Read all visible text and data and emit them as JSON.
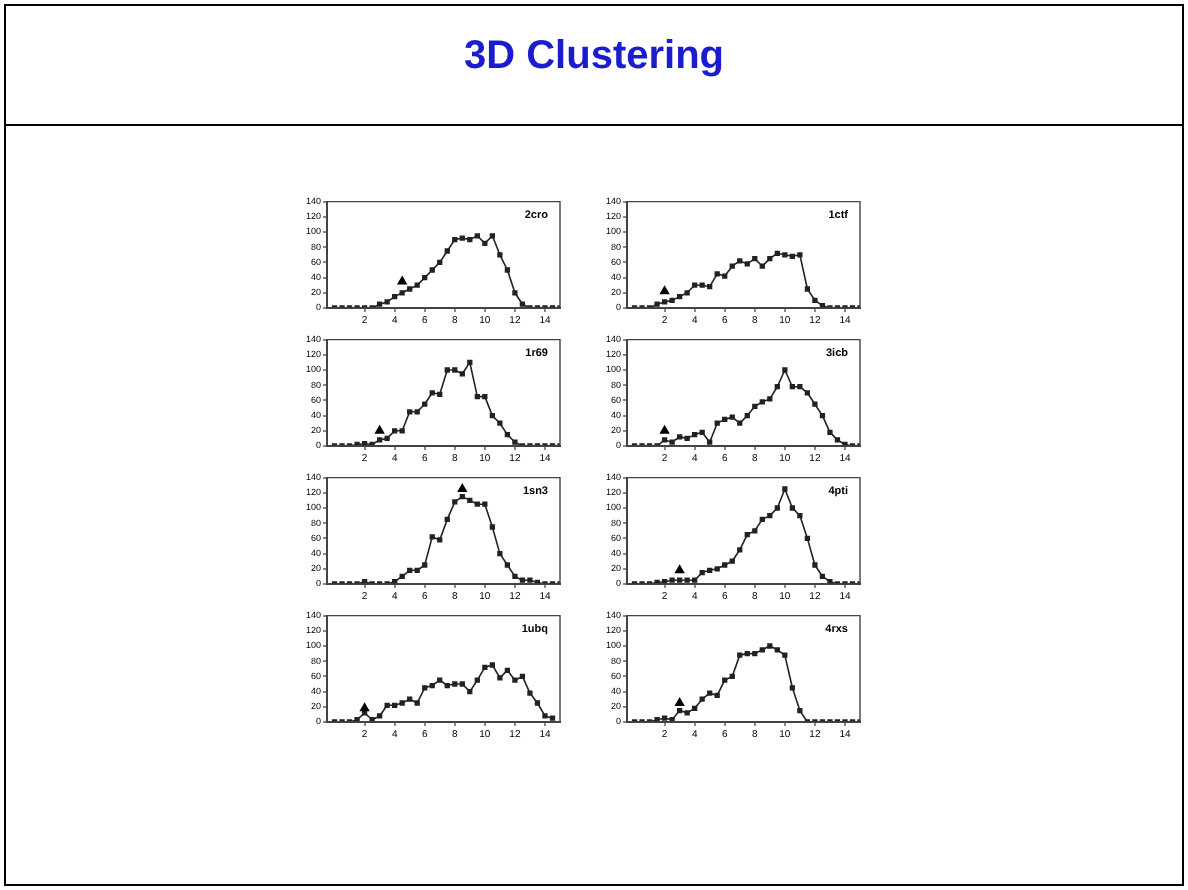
{
  "chart_data": [
    {
      "type": "line",
      "title": "3D Clustering",
      "annotations": [
        "2cro"
      ],
      "marker": "square",
      "x": [
        0,
        0.5,
        1,
        1.5,
        2,
        2.5,
        3,
        3.5,
        4,
        4.5,
        5,
        5.5,
        6,
        6.5,
        7,
        7.5,
        8,
        8.5,
        9,
        9.5,
        10,
        10.5,
        11,
        11.5,
        12,
        12.5,
        13,
        13.5,
        14,
        14.5,
        15
      ],
      "xlim": [
        -0.5,
        15
      ],
      "xticks": [
        2,
        4,
        6,
        8,
        10,
        12,
        14
      ],
      "ylim": [
        0,
        140
      ],
      "yticks": [
        0,
        20,
        40,
        60,
        80,
        100,
        120,
        140
      ],
      "series": [
        {
          "color": "#222222",
          "values": [
            0,
            0,
            0,
            0,
            0,
            0,
            5,
            8,
            15,
            20,
            25,
            30,
            40,
            50,
            60,
            75,
            90,
            92,
            90,
            95,
            85,
            95,
            70,
            50,
            20,
            5,
            0,
            0,
            0,
            0,
            0
          ]
        },
        {
          "type": "scatter",
          "marker": "triangle",
          "color": "#000000",
          "x": [
            4.5
          ],
          "values": [
            35
          ]
        }
      ]
    },
    {
      "type": "line",
      "annotations": [
        "1ctf"
      ],
      "marker": "square",
      "x": [
        0,
        0.5,
        1,
        1.5,
        2,
        2.5,
        3,
        3.5,
        4,
        4.5,
        5,
        5.5,
        6,
        6.5,
        7,
        7.5,
        8,
        8.5,
        9,
        9.5,
        10,
        10.5,
        11,
        11.5,
        12,
        12.5,
        13,
        13.5,
        14,
        14.5,
        15
      ],
      "xlim": [
        -0.5,
        15
      ],
      "xticks": [
        2,
        4,
        6,
        8,
        10,
        12,
        14
      ],
      "ylim": [
        0,
        140
      ],
      "yticks": [
        0,
        20,
        40,
        60,
        80,
        100,
        120,
        140
      ],
      "series": [
        {
          "color": "#222222",
          "values": [
            0,
            0,
            0,
            5,
            8,
            10,
            15,
            20,
            30,
            30,
            28,
            45,
            42,
            55,
            62,
            58,
            65,
            55,
            65,
            72,
            70,
            68,
            70,
            25,
            10,
            3,
            0,
            0,
            0,
            0,
            0
          ]
        },
        {
          "type": "scatter",
          "marker": "triangle",
          "color": "#000000",
          "x": [
            2
          ],
          "values": [
            22
          ]
        }
      ]
    },
    {
      "type": "line",
      "annotations": [
        "1r69"
      ],
      "marker": "square",
      "x": [
        0,
        0.5,
        1,
        1.5,
        2,
        2.5,
        3,
        3.5,
        4,
        4.5,
        5,
        5.5,
        6,
        6.5,
        7,
        7.5,
        8,
        8.5,
        9,
        9.5,
        10,
        10.5,
        11,
        11.5,
        12,
        12.5,
        13,
        13.5,
        14,
        14.5,
        15
      ],
      "xlim": [
        -0.5,
        15
      ],
      "xticks": [
        2,
        4,
        6,
        8,
        10,
        12,
        14
      ],
      "ylim": [
        0,
        140
      ],
      "yticks": [
        0,
        20,
        40,
        60,
        80,
        100,
        120,
        140
      ],
      "series": [
        {
          "color": "#222222",
          "values": [
            0,
            0,
            0,
            2,
            3,
            2,
            8,
            10,
            20,
            20,
            45,
            45,
            55,
            70,
            68,
            100,
            100,
            95,
            110,
            65,
            65,
            40,
            30,
            15,
            5,
            0,
            0,
            0,
            0,
            0,
            0
          ]
        },
        {
          "type": "scatter",
          "marker": "triangle",
          "color": "#000000",
          "x": [
            3
          ],
          "values": [
            20
          ]
        }
      ]
    },
    {
      "type": "line",
      "annotations": [
        "3icb"
      ],
      "marker": "square",
      "x": [
        0,
        0.5,
        1,
        1.5,
        2,
        2.5,
        3,
        3.5,
        4,
        4.5,
        5,
        5.5,
        6,
        6.5,
        7,
        7.5,
        8,
        8.5,
        9,
        9.5,
        10,
        10.5,
        11,
        11.5,
        12,
        12.5,
        13,
        13.5,
        14,
        14.5,
        15
      ],
      "xlim": [
        -0.5,
        15
      ],
      "xticks": [
        2,
        4,
        6,
        8,
        10,
        12,
        14
      ],
      "ylim": [
        0,
        140
      ],
      "yticks": [
        0,
        20,
        40,
        60,
        80,
        100,
        120,
        140
      ],
      "series": [
        {
          "color": "#222222",
          "values": [
            0,
            0,
            0,
            0,
            8,
            5,
            12,
            10,
            15,
            18,
            5,
            30,
            35,
            38,
            30,
            40,
            52,
            58,
            62,
            78,
            100,
            78,
            78,
            70,
            55,
            40,
            18,
            8,
            2,
            0,
            0
          ]
        },
        {
          "type": "scatter",
          "marker": "triangle",
          "color": "#000000",
          "x": [
            2
          ],
          "values": [
            20
          ]
        }
      ]
    },
    {
      "type": "line",
      "annotations": [
        "1sn3"
      ],
      "marker": "square",
      "x": [
        0,
        0.5,
        1,
        1.5,
        2,
        2.5,
        3,
        3.5,
        4,
        4.5,
        5,
        5.5,
        6,
        6.5,
        7,
        7.5,
        8,
        8.5,
        9,
        9.5,
        10,
        10.5,
        11,
        11.5,
        12,
        12.5,
        13,
        13.5,
        14,
        14.5,
        15
      ],
      "xlim": [
        -0.5,
        15
      ],
      "xticks": [
        2,
        4,
        6,
        8,
        10,
        12,
        14
      ],
      "ylim": [
        0,
        140
      ],
      "yticks": [
        0,
        20,
        40,
        60,
        80,
        100,
        120,
        140
      ],
      "series": [
        {
          "color": "#222222",
          "values": [
            0,
            0,
            0,
            0,
            3,
            0,
            0,
            0,
            3,
            10,
            18,
            18,
            25,
            62,
            58,
            85,
            108,
            115,
            110,
            105,
            105,
            75,
            40,
            25,
            10,
            5,
            5,
            2,
            0,
            0,
            0
          ]
        },
        {
          "type": "scatter",
          "marker": "triangle",
          "color": "#000000",
          "x": [
            8.5
          ],
          "values": [
            125
          ]
        }
      ]
    },
    {
      "type": "line",
      "annotations": [
        "4pti"
      ],
      "marker": "square",
      "x": [
        0,
        0.5,
        1,
        1.5,
        2,
        2.5,
        3,
        3.5,
        4,
        4.5,
        5,
        5.5,
        6,
        6.5,
        7,
        7.5,
        8,
        8.5,
        9,
        9.5,
        10,
        10.5,
        11,
        11.5,
        12,
        12.5,
        13,
        13.5,
        14,
        14.5,
        15
      ],
      "xlim": [
        -0.5,
        15
      ],
      "xticks": [
        2,
        4,
        6,
        8,
        10,
        12,
        14
      ],
      "ylim": [
        0,
        140
      ],
      "yticks": [
        0,
        20,
        40,
        60,
        80,
        100,
        120,
        140
      ],
      "series": [
        {
          "color": "#222222",
          "values": [
            0,
            0,
            0,
            2,
            3,
            5,
            5,
            5,
            5,
            15,
            18,
            20,
            25,
            30,
            45,
            65,
            70,
            85,
            90,
            100,
            125,
            100,
            90,
            60,
            25,
            10,
            3,
            0,
            0,
            0,
            0
          ]
        },
        {
          "type": "scatter",
          "marker": "triangle",
          "color": "#000000",
          "x": [
            3
          ],
          "values": [
            18
          ]
        }
      ]
    },
    {
      "type": "line",
      "annotations": [
        "1ubq"
      ],
      "marker": "square",
      "x": [
        0,
        0.5,
        1,
        1.5,
        2,
        2.5,
        3,
        3.5,
        4,
        4.5,
        5,
        5.5,
        6,
        6.5,
        7,
        7.5,
        8,
        8.5,
        9,
        9.5,
        10,
        10.5,
        11,
        11.5,
        12,
        12.5,
        13,
        13.5,
        14,
        14.5
      ],
      "xlim": [
        -0.5,
        15
      ],
      "xticks": [
        2,
        4,
        6,
        8,
        10,
        12,
        14
      ],
      "ylim": [
        0,
        140
      ],
      "yticks": [
        0,
        20,
        40,
        60,
        80,
        100,
        120,
        140
      ],
      "series": [
        {
          "color": "#222222",
          "values": [
            0,
            0,
            0,
            3,
            12,
            3,
            8,
            22,
            22,
            25,
            30,
            25,
            45,
            48,
            55,
            48,
            50,
            50,
            40,
            55,
            72,
            75,
            58,
            68,
            55,
            60,
            38,
            25,
            8,
            5
          ]
        },
        {
          "type": "scatter",
          "marker": "triangle",
          "color": "#000000",
          "x": [
            2
          ],
          "values": [
            18
          ]
        }
      ]
    },
    {
      "type": "line",
      "annotations": [
        "4rxs"
      ],
      "marker": "square",
      "x": [
        0,
        0.5,
        1,
        1.5,
        2,
        2.5,
        3,
        3.5,
        4,
        4.5,
        5,
        5.5,
        6,
        6.5,
        7,
        7.5,
        8,
        8.5,
        9,
        9.5,
        10,
        10.5,
        11,
        11.5,
        12,
        12.5,
        13,
        13.5,
        14,
        14.5,
        15
      ],
      "xlim": [
        -0.5,
        15
      ],
      "xticks": [
        2,
        4,
        6,
        8,
        10,
        12,
        14
      ],
      "ylim": [
        0,
        140
      ],
      "yticks": [
        0,
        20,
        40,
        60,
        80,
        100,
        120,
        140
      ],
      "series": [
        {
          "color": "#222222",
          "values": [
            0,
            0,
            0,
            3,
            5,
            3,
            15,
            12,
            18,
            30,
            38,
            35,
            55,
            60,
            88,
            90,
            90,
            95,
            100,
            95,
            88,
            45,
            15,
            0,
            0,
            0,
            0,
            0,
            0,
            0,
            0
          ]
        },
        {
          "type": "scatter",
          "marker": "triangle",
          "color": "#000000",
          "x": [
            3
          ],
          "values": [
            25
          ]
        }
      ]
    }
  ]
}
